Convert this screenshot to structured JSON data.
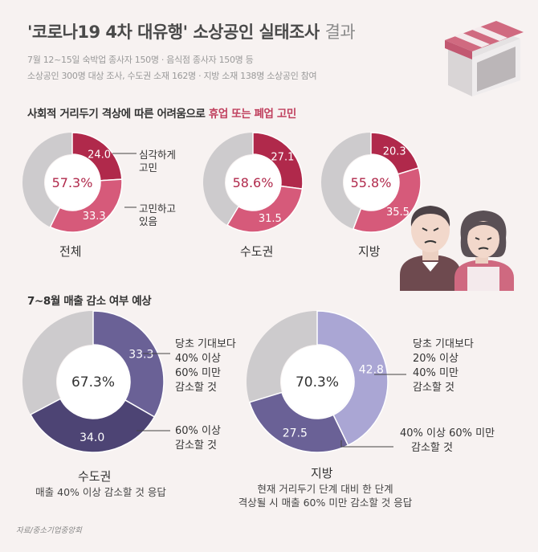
{
  "title": {
    "main": "'코로나19 4차 대유행' 소상공인 실태조사",
    "suffix": "결과"
  },
  "subtitle": {
    "line1": "7월 12~15일 숙박업 종사자 150명 · 음식점 종사자 150명 등",
    "line2": "소상공인 300명 대상 조사, 수도권 소재 162명 · 지방 소재 138명 소상공인 참여"
  },
  "section1": {
    "title_prefix": "사회적 거리두기 격상에 따른 어려움으로",
    "title_highlight": "휴업 또는 폐업 고민"
  },
  "section2": {
    "title": "7~8월 매출 감소 여부 예상"
  },
  "colors": {
    "deep": "#b0294b",
    "pink": "#d65a7a",
    "grey": "#cdcbcd",
    "purple_dark": "#4d4474",
    "purple_mid": "#6a6196",
    "purple_light": "#aaa6d4"
  },
  "chart_data": [
    {
      "type": "pie",
      "variant": "donut",
      "label": "전체",
      "center_label": "57.3%",
      "series": [
        {
          "name": "심각하게 고민",
          "value": 24.0,
          "label": "24.0"
        },
        {
          "name": "고민하고 있음",
          "value": 33.3,
          "label": "33.3"
        }
      ],
      "legend": [
        {
          "line1": "심각하게",
          "line2": "고민"
        },
        {
          "line1": "고민하고",
          "line2": "있음"
        }
      ]
    },
    {
      "type": "pie",
      "variant": "donut",
      "label": "수도권",
      "center_label": "58.6%",
      "series": [
        {
          "value": 27.1,
          "label": "27.1"
        },
        {
          "value": 31.5,
          "label": "31.5"
        }
      ]
    },
    {
      "type": "pie",
      "variant": "donut",
      "label": "지방",
      "center_label": "55.8%",
      "series": [
        {
          "value": 20.3,
          "label": "20.3"
        },
        {
          "value": 35.5,
          "label": "35.5"
        }
      ]
    },
    {
      "type": "pie",
      "variant": "donut",
      "label": "수도권",
      "center_label": "67.3%",
      "series": [
        {
          "value": 33.3,
          "label": "33.3"
        },
        {
          "value": 34.0,
          "label": "34.0"
        }
      ],
      "legend": [
        {
          "lines": [
            "당초 기대보다",
            "40% 이상",
            "60% 미만",
            "감소할 것"
          ]
        },
        {
          "lines": [
            "60% 이상",
            "감소할 것"
          ]
        }
      ],
      "footnote": [
        "매출 40% 이상 감소할 것 응답"
      ]
    },
    {
      "type": "pie",
      "variant": "donut",
      "label": "지방",
      "center_label": "70.3%",
      "series": [
        {
          "value": 42.8,
          "label": "42.8"
        },
        {
          "value": 27.5,
          "label": "27.5"
        }
      ],
      "legend": [
        {
          "lines": [
            "당초 기대보다",
            "20% 이상",
            "40% 미만",
            "감소할 것"
          ]
        },
        {
          "lines": [
            "40% 이상 60% 미만",
            "감소할 것"
          ]
        }
      ],
      "footnote": [
        "현재 거리두기 단계 대비 한 단계",
        "격상될 시 매출 60% 미만 감소할 것 응답"
      ]
    }
  ],
  "source": "자료/중소기업중앙회"
}
